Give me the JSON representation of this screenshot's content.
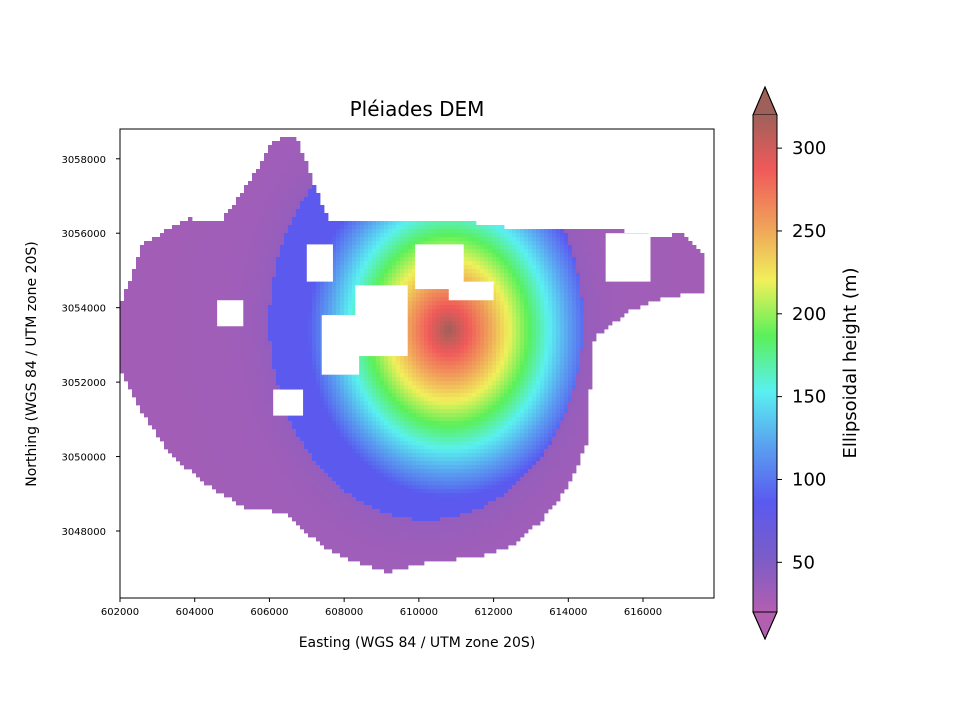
{
  "chart_data": {
    "type": "heatmap",
    "title": "Pléiades DEM",
    "xlabel": "Easting (WGS 84 / UTM zone 20S)",
    "ylabel": "Northing (WGS 84 / UTM zone 20S)",
    "xlim": [
      602000,
      617900
    ],
    "ylim": [
      3046200,
      3058800
    ],
    "xticks": [
      602000,
      604000,
      606000,
      608000,
      610000,
      612000,
      614000,
      616000
    ],
    "xtick_labels": [
      "602000",
      "604000",
      "606000",
      "608000",
      "610000",
      "612000",
      "614000",
      "616000"
    ],
    "yticks": [
      3048000,
      3050000,
      3052000,
      3054000,
      3056000,
      3058000
    ],
    "ytick_labels": [
      "3048000",
      "3050000",
      "3052000",
      "3054000",
      "3056000",
      "3058000"
    ],
    "grid": false,
    "colorbar": {
      "label": "Ellipsoidal height (m)",
      "range": [
        20,
        320
      ],
      "extend": "both",
      "ticks": [
        50,
        100,
        150,
        200,
        250,
        300
      ],
      "tick_labels": [
        "50",
        "100",
        "150",
        "200",
        "250",
        "300"
      ],
      "colors": [
        "#b35fb0",
        "#7a5cc8",
        "#5a5af0",
        "#5aa0f0",
        "#5af0f0",
        "#5af05a",
        "#f0f05a",
        "#f0a05a",
        "#f05a5a",
        "#a0605a"
      ]
    },
    "surface": {
      "outline_easting": [
        602000,
        602600,
        603800,
        604700,
        605600,
        606100,
        606700,
        607600,
        608700,
        610000,
        611400,
        612700,
        614000,
        615300,
        616400,
        617100,
        617600,
        617600,
        616600,
        615600,
        614700,
        614600,
        614500,
        614000,
        613300,
        612500,
        611600,
        610400,
        609200,
        608200,
        607400,
        606400,
        605400,
        604400,
        603400,
        602600,
        602000
      ],
      "outline_northing": [
        3054000,
        3055700,
        3056400,
        3056300,
        3057600,
        3058500,
        3058600,
        3056300,
        3056300,
        3056300,
        3056300,
        3056100,
        3056100,
        3056100,
        3055900,
        3056000,
        3055500,
        3054400,
        3054300,
        3053900,
        3053200,
        3052100,
        3050400,
        3049200,
        3048300,
        3047600,
        3047300,
        3047200,
        3046900,
        3047200,
        3047600,
        3048500,
        3048600,
        3049200,
        3050000,
        3051200,
        3052300
      ],
      "lowland_height_m": 30,
      "caldera_rim_height_m": 100,
      "peak_height_m": 320,
      "peak_easting": 610800,
      "peak_northing": 3053400,
      "nodata_patches_easting": [
        [
          607000,
          607700
        ],
        [
          604600,
          605300
        ],
        [
          606100,
          606900
        ],
        [
          607400,
          608400
        ],
        [
          608300,
          609700
        ],
        [
          609900,
          611200
        ],
        [
          610800,
          612000
        ],
        [
          615000,
          616200
        ]
      ],
      "nodata_patches_northing": [
        [
          3054700,
          3055700
        ],
        [
          3053500,
          3054200
        ],
        [
          3051100,
          3051800
        ],
        [
          3052200,
          3053800
        ],
        [
          3052700,
          3054600
        ],
        [
          3054500,
          3055700
        ],
        [
          3054200,
          3054700
        ],
        [
          3054700,
          3056000
        ]
      ]
    }
  }
}
